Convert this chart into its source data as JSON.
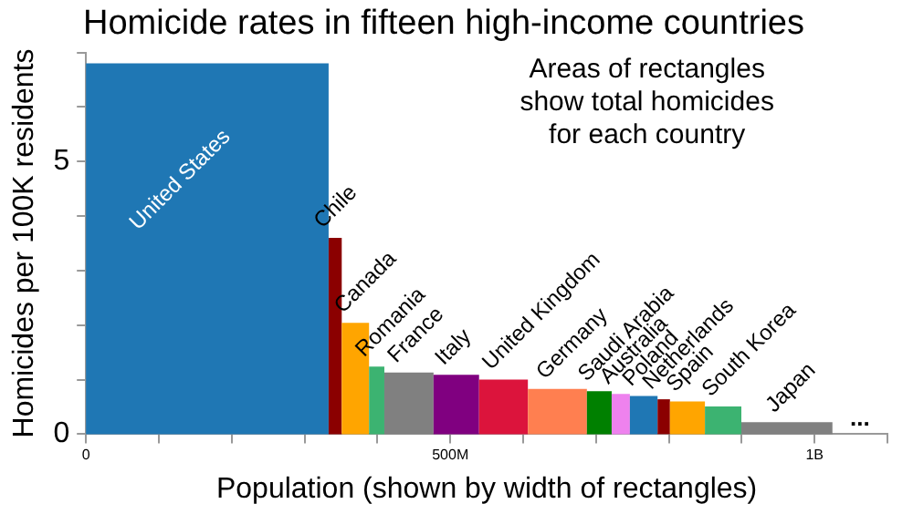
{
  "chart_data": {
    "type": "histogram",
    "title": "Homicide rates in fifteen high-income countries",
    "xlabel": "Population (shown by width of rectangles)",
    "ylabel": "Homicides per 100K residents",
    "bins": [
      0,
      333000000,
      351000000,
      388500000,
      409500000,
      477000000,
      539500000,
      606500000,
      687500000,
      721500000,
      746500000,
      784500000,
      801500000,
      849500000,
      899500000,
      1024500000
    ],
    "values": [
      6.8,
      3.6,
      2.04,
      1.24,
      1.13,
      1.09,
      1.0,
      0.83,
      0.79,
      0.74,
      0.7,
      0.64,
      0.6,
      0.51,
      0.22
    ],
    "colors": [
      "#1f77b4",
      "#8b0000",
      "#ffa500",
      "#3cb371",
      "#808080",
      "#800080",
      "#dc143c",
      "#ff7f50",
      "#008000",
      "#ee82ee",
      "#1f77b4",
      "#8b0000",
      "#ffa500",
      "#3cb371",
      "#808080"
    ],
    "xlim": [
      0,
      1100000000
    ],
    "xticks": [
      0,
      {
        "value": 100000000,
        "label": null
      },
      {
        "value": 200000000,
        "label": null
      },
      {
        "value": 300000000,
        "label": null
      },
      {
        "value": 400000000,
        "label": null
      },
      {
        "value": 500000000,
        "label": "500M"
      },
      {
        "value": 600000000,
        "label": null
      },
      {
        "value": 700000000,
        "label": null
      },
      {
        "value": 800000000,
        "label": null
      },
      {
        "value": 900000000,
        "label": null
      },
      {
        "value": 1000000000,
        "label": "1B"
      },
      {
        "value": 1100000000,
        "label": null
      }
    ],
    "ylim": [
      0,
      7
    ],
    "yticks": [
      0,
      {
        "value": 1,
        "label": null
      },
      {
        "value": 2,
        "label": null
      },
      {
        "value": 3,
        "label": null
      },
      {
        "value": 4,
        "label": null
      },
      5,
      {
        "value": 6,
        "label": null
      },
      {
        "value": 7,
        "label": null
      }
    ],
    "legend": false,
    "annotations": [
      "Areas of rectangles show total homicides for each country",
      {
        "text": "United States",
        "x": 166500000,
        "y": 6.8
      },
      {
        "text": "Chile",
        "x": 342000000,
        "y": 3.6
      },
      {
        "text": "Canada",
        "x": 369750000,
        "y": 2.04
      },
      {
        "text": "Romania",
        "x": 399000000,
        "y": 1.24
      },
      {
        "text": "France",
        "x": 443250000,
        "y": 1.13
      },
      {
        "text": "Italy",
        "x": 508250000,
        "y": 1.09
      },
      {
        "text": "United Kingdom",
        "x": 573000000,
        "y": 1.0
      },
      {
        "text": "Germany",
        "x": 647000000,
        "y": 0.83
      },
      {
        "text": "Saudi Arabia",
        "x": 704500000,
        "y": 0.79
      },
      {
        "text": "Australia",
        "x": 734000000,
        "y": 0.74
      },
      {
        "text": "Poland",
        "x": 765500000,
        "y": 0.7
      },
      {
        "text": "Netherlands",
        "x": 793000000,
        "y": 0.64
      },
      {
        "text": "Spain",
        "x": 825500000,
        "y": 0.6
      },
      {
        "text": "South Korea",
        "x": 874500000,
        "y": 0.51
      },
      {
        "text": "Japan",
        "x": 962000000,
        "y": 0.22
      },
      "..."
    ]
  }
}
